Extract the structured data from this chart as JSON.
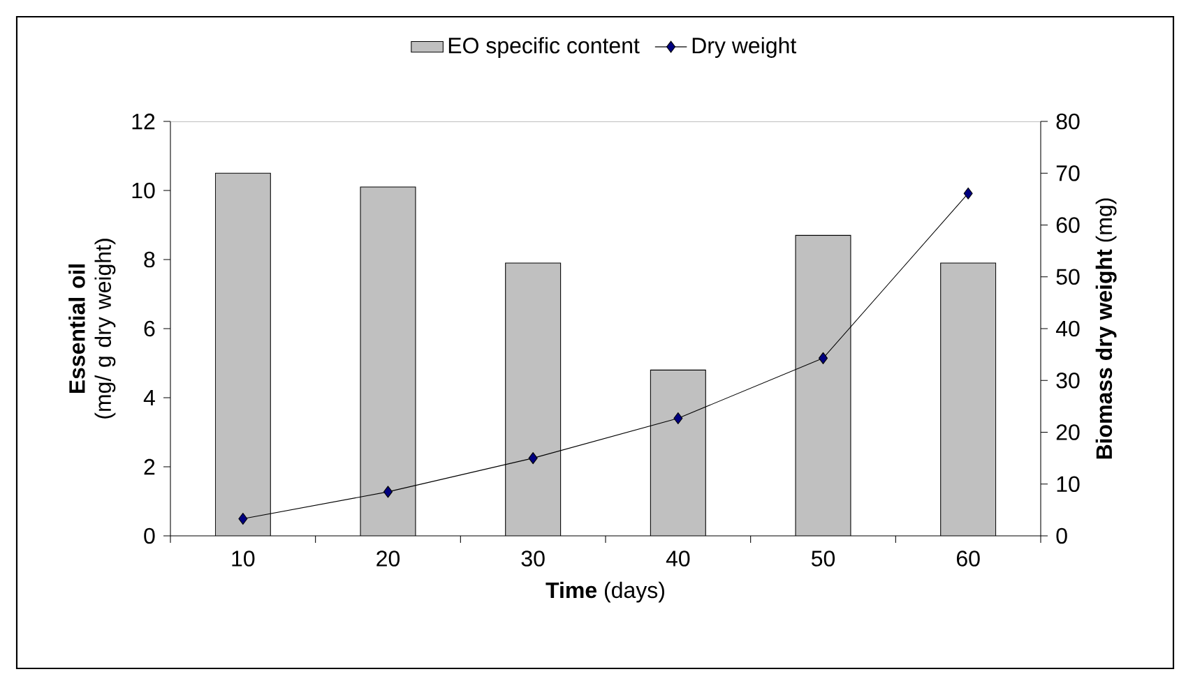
{
  "chart_data": {
    "type": "bar",
    "categories": [
      "10",
      "20",
      "30",
      "40",
      "50",
      "60"
    ],
    "xlabel": "**Time** (days)",
    "ylabel": "**Essential oil** (mg/ g dry weight)",
    "y2label": "**Biomass dry weight** (mg)",
    "ylim": [
      0,
      12
    ],
    "yticks": [
      0,
      2,
      4,
      6,
      8,
      10,
      12
    ],
    "y2lim": [
      0,
      80
    ],
    "y2ticks": [
      0,
      10,
      20,
      30,
      40,
      50,
      60,
      70,
      80
    ],
    "legend": "top",
    "grid": false,
    "series": [
      {
        "name": "EO specific content",
        "color": "#c0c0c0",
        "values": [
          10.5,
          10.1,
          7.9,
          4.8,
          8.7,
          7.9
        ]
      },
      {
        "name": "Dry weight",
        "type": "line",
        "axis": "y2",
        "color": "#000080",
        "marker": "diamond",
        "values": [
          3.3,
          8.5,
          15.0,
          22.7,
          34.3,
          66.1
        ]
      }
    ]
  }
}
